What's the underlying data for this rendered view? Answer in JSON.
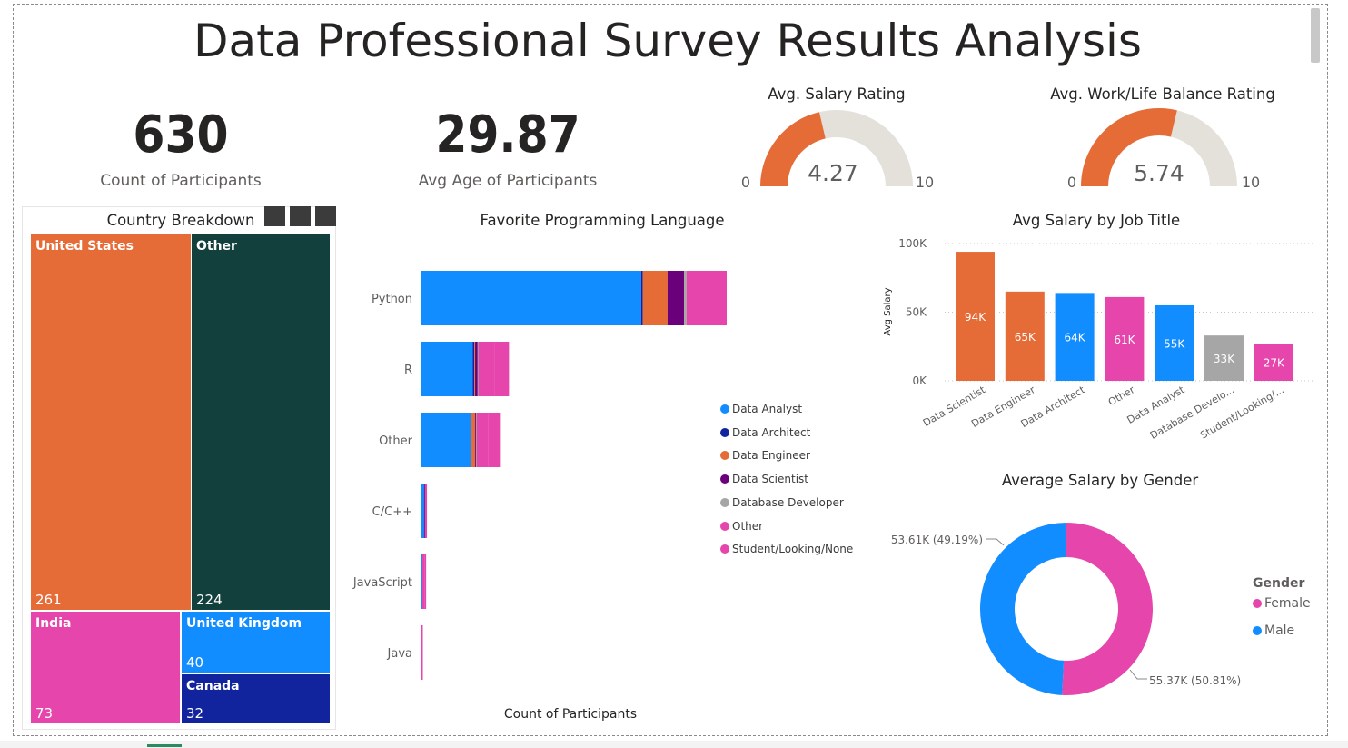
{
  "title": "Data Professional Survey Results Analysis",
  "kpis": {
    "count_value": "630",
    "count_label": "Count of Participants",
    "age_value": "29.87",
    "age_label": "Avg Age of Participants"
  },
  "gauges": [
    {
      "title": "Avg. Salary Rating",
      "value": 4.27,
      "value_label": "4.27",
      "min": 0,
      "max": 10,
      "min_label": "0",
      "max_label": "10"
    },
    {
      "title": "Avg. Work/Life Balance Rating",
      "value": 5.74,
      "value_label": "5.74",
      "min": 0,
      "max": 10,
      "min_label": "0",
      "max_label": "10"
    }
  ],
  "treemap": {
    "title": "Country Breakdown",
    "tiles": [
      {
        "name": "United States",
        "value": 261,
        "value_label": "261",
        "color": "#E66C37"
      },
      {
        "name": "Other",
        "value": 224,
        "value_label": "224",
        "color": "#12403C"
      },
      {
        "name": "India",
        "value": 73,
        "value_label": "73",
        "color": "#E645AB"
      },
      {
        "name": "United Kingdom",
        "value": 40,
        "value_label": "40",
        "color": "#118DFF"
      },
      {
        "name": "Canada",
        "value": 32,
        "value_label": "32",
        "color": "#12239E"
      }
    ]
  },
  "lang_chart": {
    "title": "Favorite Programming Language",
    "xlabel": "Count of Participants",
    "legend_title": ""
  },
  "job_chart": {
    "title": "Avg Salary by Job Title",
    "ylabel": "Avg Salary",
    "yticks": [
      "100K",
      "50K",
      "0K"
    ]
  },
  "gender_chart": {
    "title": "Average Salary by Gender",
    "legend_title": "Gender",
    "labels": [
      "53.61K (49.19%)",
      "55.37K (50.81%)"
    ]
  },
  "chart_data": [
    {
      "type": "bar",
      "orientation": "horizontal-stacked",
      "title": "Favorite Programming Language",
      "xlabel": "Count of Participants",
      "categories": [
        "Python",
        "R",
        "Other",
        "C/C++",
        "JavaScript",
        "Java"
      ],
      "series": [
        {
          "name": "Data Analyst",
          "color": "#118DFF",
          "values": [
            266,
            62,
            60,
            3,
            1,
            0
          ]
        },
        {
          "name": "Data Architect",
          "color": "#12239E",
          "values": [
            2,
            2,
            0,
            1,
            0,
            0
          ]
        },
        {
          "name": "Data Engineer",
          "color": "#E66C37",
          "values": [
            30,
            1,
            5,
            0,
            0,
            0
          ]
        },
        {
          "name": "Data Scientist",
          "color": "#6B007B",
          "values": [
            20,
            3,
            1,
            0,
            0,
            0
          ]
        },
        {
          "name": "Database Developer",
          "color": "#A6A6A6",
          "values": [
            3,
            1,
            1,
            0,
            0,
            0
          ]
        },
        {
          "name": "Other",
          "color": "#E645AB",
          "values": [
            55,
            20,
            14,
            1,
            3,
            1
          ]
        },
        {
          "name": "Student/Looking/None",
          "color": "#E645AB",
          "values": [
            57,
            17,
            14,
            1,
            1,
            0
          ]
        }
      ],
      "xlim": [
        0,
        440
      ]
    },
    {
      "type": "bar",
      "title": "Avg Salary by Job Title",
      "ylabel": "Avg Salary",
      "categories": [
        "Data Scientist",
        "Data Engineer",
        "Data Architect",
        "Other",
        "Data Analyst",
        "Database Develo...",
        "Student/Looking/..."
      ],
      "values": [
        94,
        65,
        64,
        61,
        55,
        33,
        27
      ],
      "value_labels": [
        "94K",
        "65K",
        "64K",
        "61K",
        "55K",
        "33K",
        "27K"
      ],
      "colors": [
        "#E66C37",
        "#E66C37",
        "#118DFF",
        "#E645AB",
        "#118DFF",
        "#A6A6A6",
        "#E645AB"
      ],
      "unit": "K",
      "ylim": [
        0,
        100
      ]
    },
    {
      "type": "pie",
      "title": "Average Salary by Gender",
      "legend_title": "Gender",
      "categories": [
        "Female",
        "Male"
      ],
      "values": [
        55.37,
        53.61
      ],
      "labels": [
        "55.37K (50.81%)",
        "53.61K (49.19%)"
      ],
      "colors": [
        "#E645AB",
        "#118DFF"
      ]
    }
  ]
}
